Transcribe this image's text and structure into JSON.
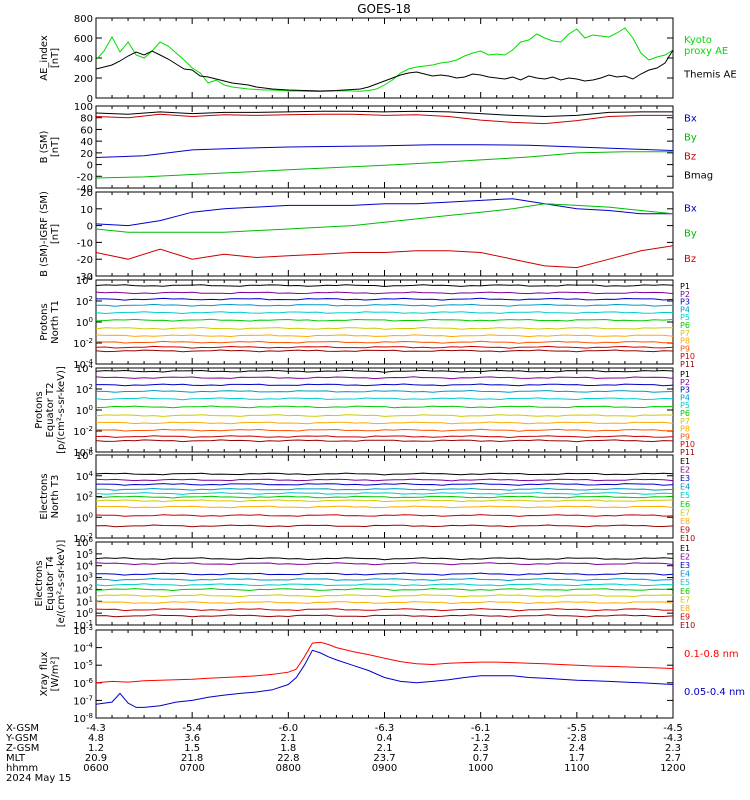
{
  "title": "GOES-18",
  "chart_data": [
    {
      "type": "line",
      "ylabel": "AE_index\n[nT]",
      "ylim": [
        0,
        800
      ],
      "yticks": [
        0,
        200,
        400,
        600,
        800
      ],
      "legend": [
        "Kyoto\nproxy AE",
        "Themis AE"
      ],
      "colors": [
        "#00dd00",
        "#000000"
      ],
      "series": [
        {
          "name": "Kyoto proxy AE",
          "color": "#00dd00",
          "x": [
            0,
            5,
            10,
            15,
            20,
            25,
            30,
            35,
            40,
            45,
            50,
            55,
            60,
            65,
            70,
            75,
            80,
            85,
            90,
            95,
            100,
            105,
            110,
            115,
            120,
            125,
            130,
            135,
            140,
            145,
            150,
            155,
            160,
            165,
            170,
            175,
            180,
            185,
            190,
            195,
            200,
            205,
            210,
            215,
            220,
            225,
            230,
            235,
            240,
            245,
            250,
            255,
            260,
            265,
            270,
            275,
            280,
            285,
            290,
            295,
            300,
            305,
            310,
            315,
            320,
            325,
            330,
            335,
            340,
            345,
            350,
            355,
            360
          ],
          "y": [
            380,
            470,
            610,
            460,
            560,
            430,
            400,
            470,
            560,
            520,
            450,
            380,
            300,
            250,
            150,
            180,
            130,
            110,
            100,
            90,
            85,
            80,
            80,
            75,
            70,
            70,
            68,
            65,
            65,
            68,
            70,
            72,
            70,
            68,
            75,
            90,
            130,
            180,
            250,
            290,
            310,
            320,
            330,
            350,
            360,
            380,
            420,
            450,
            470,
            430,
            440,
            430,
            480,
            560,
            580,
            640,
            600,
            570,
            560,
            640,
            690,
            600,
            630,
            620,
            610,
            650,
            700,
            600,
            450,
            380,
            410,
            430,
            480
          ]
        },
        {
          "name": "Themis AE",
          "color": "#000000",
          "x": [
            0,
            5,
            10,
            15,
            20,
            25,
            30,
            35,
            40,
            45,
            50,
            55,
            60,
            65,
            70,
            75,
            80,
            85,
            90,
            95,
            100,
            105,
            110,
            115,
            120,
            125,
            130,
            135,
            140,
            145,
            150,
            155,
            160,
            165,
            170,
            175,
            180,
            185,
            190,
            195,
            200,
            205,
            210,
            215,
            220,
            225,
            230,
            235,
            240,
            245,
            250,
            255,
            260,
            265,
            270,
            275,
            280,
            285,
            290,
            295,
            300,
            305,
            310,
            315,
            320,
            325,
            330,
            335,
            340,
            345,
            350,
            355,
            360
          ],
          "y": [
            290,
            310,
            330,
            370,
            420,
            460,
            430,
            470,
            430,
            390,
            340,
            290,
            280,
            220,
            210,
            190,
            170,
            150,
            140,
            130,
            110,
            100,
            90,
            85,
            80,
            78,
            75,
            72,
            70,
            72,
            75,
            80,
            85,
            90,
            110,
            140,
            170,
            200,
            230,
            250,
            260,
            240,
            220,
            230,
            220,
            200,
            210,
            240,
            230,
            210,
            200,
            190,
            210,
            180,
            220,
            200,
            190,
            210,
            180,
            200,
            190,
            170,
            180,
            200,
            230,
            210,
            220,
            190,
            240,
            280,
            300,
            350,
            480
          ]
        }
      ]
    },
    {
      "type": "line",
      "ylabel": "B (SM)\n[nT]",
      "ylim": [
        -40,
        100
      ],
      "yticks": [
        -40,
        -20,
        0,
        20,
        40,
        60,
        80,
        100
      ],
      "legend": [
        "Bx",
        "By",
        "Bz",
        "Bmag"
      ],
      "colors": [
        "#0000cc",
        "#00bb00",
        "#cc0000",
        "#000000"
      ],
      "series": [
        {
          "name": "Bx",
          "color": "#0000cc",
          "x": [
            0,
            30,
            60,
            90,
            120,
            150,
            180,
            210,
            240,
            270,
            300,
            330,
            360
          ],
          "y": [
            12,
            15,
            25,
            28,
            30,
            31,
            32,
            34,
            34,
            33,
            30,
            27,
            24
          ]
        },
        {
          "name": "By",
          "color": "#00bb00",
          "x": [
            0,
            30,
            60,
            90,
            120,
            150,
            180,
            210,
            240,
            270,
            300,
            330,
            360
          ],
          "y": [
            -23,
            -21,
            -17,
            -13,
            -9,
            -5,
            -1,
            3,
            8,
            13,
            20,
            22,
            22
          ]
        },
        {
          "name": "Bz",
          "color": "#cc0000",
          "x": [
            0,
            20,
            40,
            60,
            80,
            100,
            120,
            140,
            160,
            180,
            200,
            220,
            240,
            260,
            280,
            300,
            320,
            340,
            360
          ],
          "y": [
            82,
            80,
            86,
            82,
            85,
            84,
            85,
            86,
            86,
            84,
            85,
            82,
            76,
            72,
            70,
            75,
            82,
            84,
            84
          ]
        },
        {
          "name": "Bmag",
          "color": "#000000",
          "x": [
            0,
            20,
            40,
            60,
            80,
            100,
            120,
            140,
            160,
            180,
            200,
            220,
            240,
            260,
            280,
            300,
            320,
            340,
            360
          ],
          "y": [
            88,
            86,
            90,
            87,
            89,
            89,
            90,
            91,
            91,
            90,
            91,
            90,
            87,
            84,
            82,
            84,
            89,
            90,
            90
          ]
        }
      ]
    },
    {
      "type": "line",
      "ylabel": "B (SM)-IGRF (SM)\n[nT]",
      "ylim": [
        -30,
        20
      ],
      "yticks": [
        -30,
        -20,
        -10,
        0,
        10,
        20
      ],
      "legend": [
        "Bx",
        "By",
        "Bz"
      ],
      "colors": [
        "#0000cc",
        "#00bb00",
        "#cc0000"
      ],
      "series": [
        {
          "name": "Bx",
          "color": "#0000cc",
          "x": [
            0,
            20,
            40,
            60,
            80,
            100,
            120,
            140,
            160,
            180,
            200,
            220,
            240,
            260,
            280,
            300,
            320,
            340,
            360
          ],
          "y": [
            1,
            0,
            3,
            8,
            10,
            11,
            12,
            12,
            12,
            13,
            13,
            14,
            15,
            16,
            13,
            10,
            9,
            7,
            7
          ]
        },
        {
          "name": "By",
          "color": "#00bb00",
          "x": [
            0,
            20,
            40,
            60,
            80,
            100,
            120,
            140,
            160,
            180,
            200,
            220,
            240,
            260,
            280,
            300,
            320,
            340,
            360
          ],
          "y": [
            -2,
            -4,
            -4,
            -4,
            -4,
            -3,
            -2,
            -1,
            0,
            2,
            4,
            6,
            8,
            10,
            13,
            12,
            11,
            9,
            7
          ]
        },
        {
          "name": "Bz",
          "color": "#cc0000",
          "x": [
            0,
            20,
            40,
            60,
            80,
            100,
            120,
            140,
            160,
            180,
            200,
            220,
            240,
            260,
            280,
            300,
            320,
            340,
            360
          ],
          "y": [
            -16,
            -20,
            -14,
            -20,
            -17,
            -19,
            -18,
            -17,
            -16,
            -16,
            -15,
            -15,
            -16,
            -20,
            -24,
            -25,
            -20,
            -15,
            -12
          ]
        }
      ]
    },
    {
      "type": "line",
      "ylabel": "Protons\nNorth T1",
      "log": true,
      "ylim": [
        0.0001,
        10000
      ],
      "yticks": [
        "10^-4",
        "10^-2",
        "10^0",
        "10^2",
        "10^4"
      ],
      "legend": [
        "P1",
        "P2",
        "P3",
        "P4",
        "P5",
        "P6",
        "P7",
        "P8",
        "P9",
        "P10",
        "P11"
      ],
      "colors": [
        "#000000",
        "#7f0099",
        "#0000cc",
        "#0099cc",
        "#00cccc",
        "#00cc00",
        "#cccc00",
        "#ffaa00",
        "#ff5500",
        "#cc0000",
        "#990000"
      ],
      "levels": [
        3000,
        600,
        150,
        40,
        8,
        1.5,
        0.25,
        0.05,
        0.012,
        0.004,
        0.0018
      ]
    },
    {
      "type": "line",
      "ylabel": "Protons\nEquator T2\n[p/(cm²-s-sr-keV)]",
      "log": true,
      "ylim": [
        0.0001,
        10000
      ],
      "yticks": [
        "10^-4",
        "10^-2",
        "10^0",
        "10^2",
        "10^4"
      ],
      "legend": [
        "P1",
        "P2",
        "P3",
        "P4",
        "P5",
        "P6",
        "P7",
        "P8",
        "P9",
        "P10",
        "P11"
      ],
      "colors": [
        "#000000",
        "#7f0099",
        "#0000cc",
        "#0099cc",
        "#00cccc",
        "#00cc00",
        "#cccc00",
        "#ffaa00",
        "#ff5500",
        "#cc0000",
        "#990000"
      ],
      "levels": [
        5000,
        1200,
        250,
        60,
        12,
        2,
        0.3,
        0.06,
        0.012,
        0.003,
        0.0012
      ]
    },
    {
      "type": "line",
      "ylabel": "Electrons\nNorth T3",
      "log": true,
      "ylim": [
        0.01,
        1000000
      ],
      "yticks": [
        "10^-2",
        "10^0",
        "10^2",
        "10^4",
        "10^6"
      ],
      "legend": [
        "E1",
        "E2",
        "E3",
        "E4",
        "E5",
        "E6",
        "E7",
        "E8",
        "E9",
        "E10"
      ],
      "colors": [
        "#000000",
        "#7f0099",
        "#0000cc",
        "#0099cc",
        "#00cccc",
        "#00cc00",
        "#cccc00",
        "#ffaa00",
        "#cc0000",
        "#990000"
      ],
      "levels": [
        15000,
        4000,
        1500,
        500,
        200,
        90,
        40,
        10,
        1.5,
        0.15
      ]
    },
    {
      "type": "line",
      "ylabel": "Electrons\nEquator T4\n[e/(cm²-s-sr-keV)]",
      "log": true,
      "ylim": [
        0.1,
        1000000
      ],
      "yticks": [
        "10^-1",
        "10^0",
        "10^1",
        "10^2",
        "10^3",
        "10^4",
        "10^5",
        "10^6"
      ],
      "legend": [
        "E1",
        "E2",
        "E3",
        "E4",
        "E5",
        "E6",
        "E7",
        "E8",
        "E9",
        "E10"
      ],
      "colors": [
        "#000000",
        "#7f0099",
        "#0000cc",
        "#0099cc",
        "#00cccc",
        "#00cc00",
        "#cccc00",
        "#ffaa00",
        "#cc0000",
        "#990000"
      ],
      "levels": [
        40000,
        15000,
        2000,
        700,
        250,
        100,
        30,
        8,
        2,
        0.6
      ]
    },
    {
      "type": "line",
      "ylabel": "Xray flux\n[W/m²]",
      "log": true,
      "ylim": [
        1e-08,
        0.001
      ],
      "yticks": [
        "10^-8",
        "10^-7",
        "10^-6",
        "10^-5",
        "10^-4",
        "10^-3"
      ],
      "legend": [
        "0.1-0.8 nm",
        "0.05-0.4 nm"
      ],
      "colors": [
        "#ff0000",
        "#0000cc"
      ],
      "series": [
        {
          "name": "0.1-0.8 nm",
          "color": "#ff0000",
          "x": [
            0,
            10,
            20,
            30,
            40,
            50,
            60,
            70,
            80,
            90,
            100,
            110,
            120,
            125,
            130,
            135,
            140,
            145,
            150,
            160,
            170,
            180,
            190,
            200,
            210,
            220,
            230,
            240,
            250,
            260,
            270,
            280,
            290,
            300,
            310,
            320,
            330,
            340,
            350,
            360
          ],
          "y": [
            1e-06,
            1.2e-06,
            1.1e-06,
            1.3e-06,
            1.4e-06,
            1.5e-06,
            1.6e-06,
            1.8e-06,
            2e-06,
            2.2e-06,
            2.5e-06,
            3e-06,
            4e-06,
            6e-06,
            3e-05,
            0.00018,
            0.0002,
            0.00015,
            0.0001,
            6e-05,
            4e-05,
            2.5e-05,
            1.6e-05,
            1.2e-05,
            1.1e-05,
            1.3e-05,
            1.4e-05,
            1.5e-05,
            1.5e-05,
            1.4e-05,
            1.3e-05,
            1.2e-05,
            1.1e-05,
            1e-05,
            9e-06,
            8.5e-06,
            8e-06,
            7.5e-06,
            7e-06,
            6.5e-06
          ]
        },
        {
          "name": "0.05-0.4 nm",
          "color": "#0000cc",
          "x": [
            0,
            10,
            15,
            20,
            25,
            30,
            40,
            50,
            60,
            70,
            80,
            90,
            100,
            110,
            120,
            125,
            130,
            135,
            140,
            145,
            150,
            160,
            170,
            180,
            190,
            200,
            210,
            220,
            230,
            240,
            250,
            260,
            270,
            280,
            290,
            300,
            310,
            320,
            330,
            340,
            350,
            360
          ],
          "y": [
            6e-08,
            8e-08,
            2.5e-07,
            7e-08,
            4e-08,
            4e-08,
            5e-08,
            8e-08,
            1e-07,
            1.5e-07,
            2e-07,
            2.5e-07,
            3e-07,
            4e-07,
            8e-07,
            2e-06,
            1e-05,
            7e-05,
            5e-05,
            3e-05,
            2e-05,
            1e-05,
            5e-06,
            2e-06,
            1.2e-06,
            1e-06,
            1.2e-06,
            1.5e-06,
            2e-06,
            2.5e-06,
            2.5e-06,
            2.5e-06,
            2e-06,
            1.8e-06,
            1.6e-06,
            1.4e-06,
            1.3e-06,
            1.2e-06,
            1.1e-06,
            1e-06,
            9e-07,
            8e-07
          ]
        }
      ]
    }
  ],
  "orbit_table": {
    "row_labels": [
      "X-GSM",
      "Y-GSM",
      "Z-GSM",
      "MLT",
      "hhmm"
    ],
    "columns": [
      [
        "-4.3",
        "4.8",
        "1.2",
        "20.9",
        "0600"
      ],
      [
        "-5.4",
        "3.6",
        "1.5",
        "21.8",
        "0700"
      ],
      [
        "-6.0",
        "2.1",
        "1.8",
        "22.8",
        "0800"
      ],
      [
        "-6.3",
        "0.4",
        "2.1",
        "23.7",
        "0900"
      ],
      [
        "-6.1",
        "-1.2",
        "2.3",
        "0.7",
        "1000"
      ],
      [
        "-5.5",
        "-2.8",
        "2.4",
        "1.7",
        "1100"
      ],
      [
        "-4.5",
        "-4.3",
        "2.3",
        "2.7",
        "1200"
      ]
    ],
    "date": "2024 May 15"
  }
}
